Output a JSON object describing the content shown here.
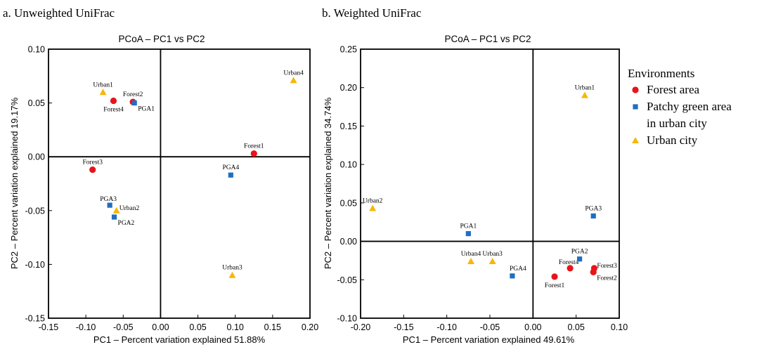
{
  "colors": {
    "forest": "#e8141b",
    "pga": "#1f6fc1",
    "urban": "#f5b70a",
    "axis": "#000000"
  },
  "legend": {
    "title": "Environments",
    "items": [
      {
        "group": "forest",
        "lines": [
          "Forest area"
        ],
        "marker": "circle"
      },
      {
        "group": "pga",
        "lines": [
          "Patchy green area",
          "in urban city"
        ],
        "marker": "square"
      },
      {
        "group": "urban",
        "lines": [
          "Urban city"
        ],
        "marker": "triangle"
      }
    ]
  },
  "chart_data": [
    {
      "type": "scatter",
      "panel_label": "a. Unweighted UniFrac",
      "title": "PCoA – PC1 vs PC2",
      "xlabel": "PC1 – Percent variation explained 51.88%",
      "ylabel": "PC2 – Percent variation explained 19.17%",
      "xlim": [
        -0.15,
        0.2
      ],
      "ylim": [
        -0.15,
        0.1
      ],
      "xticks": [
        "-0.15",
        "-0.10",
        "-0.05",
        "0.00",
        "0.05",
        "0.10",
        "0.15",
        "0.20"
      ],
      "yticks": [
        "-0.15",
        "-0.10",
        "-0.05",
        "0.00",
        "0.05",
        "0.10"
      ],
      "points": [
        {
          "label": "Forest1",
          "group": "forest",
          "x": 0.125,
          "y": 0.003,
          "label_pos": "above"
        },
        {
          "label": "Forest2",
          "group": "forest",
          "x": -0.037,
          "y": 0.051,
          "label_pos": "above"
        },
        {
          "label": "Forest3",
          "group": "forest",
          "x": -0.091,
          "y": -0.012,
          "label_pos": "above"
        },
        {
          "label": "Forest4",
          "group": "forest",
          "x": -0.063,
          "y": 0.052,
          "label_pos": "below"
        },
        {
          "label": "PGA1",
          "group": "pga",
          "x": -0.035,
          "y": 0.05,
          "label_pos": "right-below"
        },
        {
          "label": "PGA2",
          "group": "pga",
          "x": -0.062,
          "y": -0.056,
          "label_pos": "right-below"
        },
        {
          "label": "PGA3",
          "group": "pga",
          "x": -0.068,
          "y": -0.045,
          "label_pos": "above-left"
        },
        {
          "label": "PGA4",
          "group": "pga",
          "x": 0.094,
          "y": -0.017,
          "label_pos": "above"
        },
        {
          "label": "Urban1",
          "group": "urban",
          "x": -0.077,
          "y": 0.06,
          "label_pos": "above"
        },
        {
          "label": "Urban2",
          "group": "urban",
          "x": -0.059,
          "y": -0.05,
          "label_pos": "right-above"
        },
        {
          "label": "Urban3",
          "group": "urban",
          "x": 0.096,
          "y": -0.11,
          "label_pos": "above"
        },
        {
          "label": "Urban4",
          "group": "urban",
          "x": 0.178,
          "y": 0.071,
          "label_pos": "above"
        }
      ]
    },
    {
      "type": "scatter",
      "panel_label": "b. Weighted UniFrac",
      "title": "PCoA – PC1 vs PC2",
      "xlabel": "PC1 – Percent variation explained 49.61%",
      "ylabel": "PC2 – Percent variation explained 34.74%",
      "xlim": [
        -0.2,
        0.1
      ],
      "ylim": [
        -0.1,
        0.25
      ],
      "xticks": [
        "-0.20",
        "-0.15",
        "-0.10",
        "-0.05",
        "0.00",
        "0.05",
        "0.10"
      ],
      "yticks": [
        "-0.10",
        "-0.05",
        "0.00",
        "0.05",
        "0.10",
        "0.15",
        "0.20",
        "0.25"
      ],
      "points": [
        {
          "label": "Forest1",
          "group": "forest",
          "x": 0.025,
          "y": -0.046,
          "label_pos": "below"
        },
        {
          "label": "Forest2",
          "group": "forest",
          "x": 0.07,
          "y": -0.04,
          "label_pos": "right-below"
        },
        {
          "label": "Forest3",
          "group": "forest",
          "x": 0.071,
          "y": -0.035,
          "label_pos": "right-above"
        },
        {
          "label": "Forest4",
          "group": "forest",
          "x": 0.043,
          "y": -0.035,
          "label_pos": "above-left"
        },
        {
          "label": "PGA1",
          "group": "pga",
          "x": -0.075,
          "y": 0.01,
          "label_pos": "above"
        },
        {
          "label": "PGA2",
          "group": "pga",
          "x": 0.054,
          "y": -0.023,
          "label_pos": "above"
        },
        {
          "label": "PGA3",
          "group": "pga",
          "x": 0.07,
          "y": 0.033,
          "label_pos": "above"
        },
        {
          "label": "PGA4",
          "group": "pga",
          "x": -0.024,
          "y": -0.045,
          "label_pos": "above-right"
        },
        {
          "label": "Urban1",
          "group": "urban",
          "x": 0.06,
          "y": 0.19,
          "label_pos": "above"
        },
        {
          "label": "Urban2",
          "group": "urban",
          "x": -0.186,
          "y": 0.043,
          "label_pos": "above"
        },
        {
          "label": "Urban3",
          "group": "urban",
          "x": -0.047,
          "y": -0.026,
          "label_pos": "above"
        },
        {
          "label": "Urban4",
          "group": "urban",
          "x": -0.072,
          "y": -0.026,
          "label_pos": "above"
        }
      ]
    }
  ]
}
